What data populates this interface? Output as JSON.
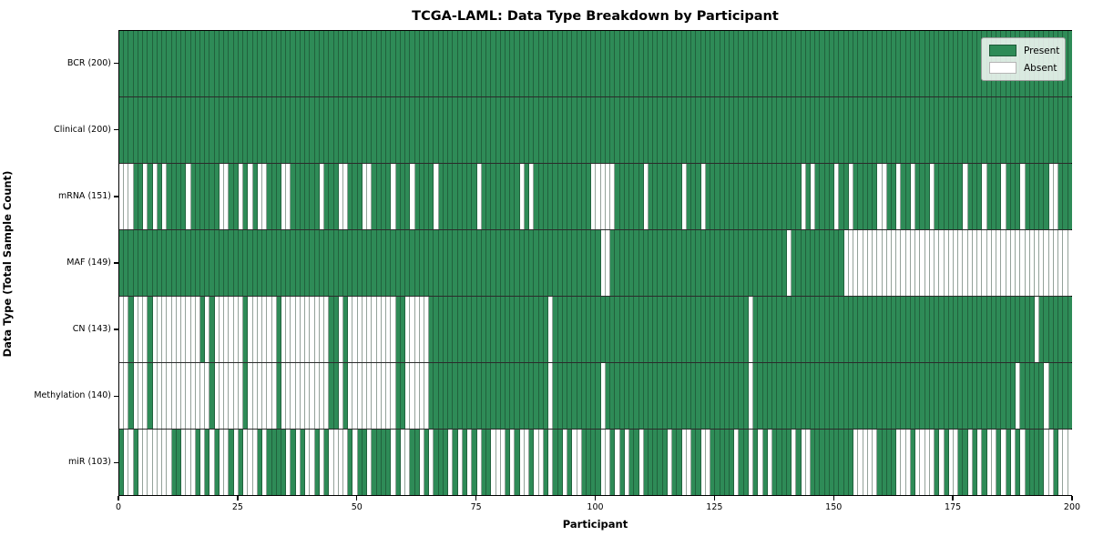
{
  "title": "TCGA-LAML: Data Type Breakdown by Participant",
  "axes": {
    "x_label": "Participant",
    "y_label": "Data Type (Total Sample Count)",
    "x_ticks": [
      0,
      25,
      50,
      75,
      100,
      125,
      150,
      175,
      200
    ]
  },
  "legend": {
    "items": [
      {
        "label": "Present",
        "color": "#2e8b57"
      },
      {
        "label": "Absent",
        "color": "#ffffff"
      }
    ]
  },
  "colors": {
    "present": "#2e8b57",
    "absent": "#ffffff",
    "cell_edge": "rgba(18,48,32,0.45)",
    "row_edge": "#2b2b2b"
  },
  "chart_data": {
    "type": "heatmap",
    "title": "TCGA-LAML: Data Type Breakdown by Participant",
    "xlabel": "Participant",
    "ylabel": "Data Type (Total Sample Count)",
    "x_range": [
      0,
      200
    ],
    "x_ticks": [
      0,
      25,
      50,
      75,
      100,
      125,
      150,
      175,
      200
    ],
    "legend_position": "upper right",
    "legend_entries": [
      "Present",
      "Absent"
    ],
    "value_encoding": {
      "1": "Present",
      "0": "Absent"
    },
    "rows": [
      {
        "name": "BCR",
        "label": "BCR (200)",
        "total_present": 200,
        "presence": "11111111111111111111111111111111111111111111111111111111111111111111111111111111111111111111111111111111111111111111111111111111111111111111111111111111111111111111111111111111111111111111111111111111"
      },
      {
        "name": "Clinical",
        "label": "Clinical (200)",
        "total_present": 200,
        "presence": "11111111111111111111111111111111111111111111111111111111111111111111111111111111111111111111111111111111111111111111111111111111111111111111111111111111111111111111111111111111111111111111111111111111"
      },
      {
        "name": "mRNA",
        "label": "mRNA (151)",
        "total_present": 151,
        "presence": "00011010101111011111100110101001110011111101110011100111101110111101111111101111111101011111111111100000111111011111110111011111111111111111111010111101101111100110110111011111101110111011101111100111 11"
      },
      {
        "name": "MAF",
        "label": "MAF (149)",
        "total_present": 149,
        "presence": "11111111111111111111111111111111111111111111111111111111111111111111111111111111111111111111111111111001111111111111111111111111111111111111011111111111000000000000000000000000000000000000000000000000"
      },
      {
        "name": "CN",
        "label": "CN (143)",
        "total_present": 143,
        "presence": "00100010000000000101000000100000010000000000110100000000001100000111111111111111111111111101111111111111111111111111111111111111111101111111111111111111111111111111111111111111111111111111111101111111 11"
      },
      {
        "name": "Methylation",
        "label": "Methylation (140)",
        "total_present": 140,
        "presence": "00100010000000000001000000100000010000000000110100000000001100000111111111111111111111111101111111111011111111111111111111111111111101111111111111111111111111111111111111111111111111111111011111011111 1111"
      },
      {
        "name": "miR",
        "label": "miR (103)",
        "total_present": 103,
        "presence": "10010000000110001010100101000101111010100101000010110111101001101011101010101100010100100101101001111001010110111110110011001111101101010111101001111111110000011110001000010100110101001010101111001000"
      }
    ]
  }
}
